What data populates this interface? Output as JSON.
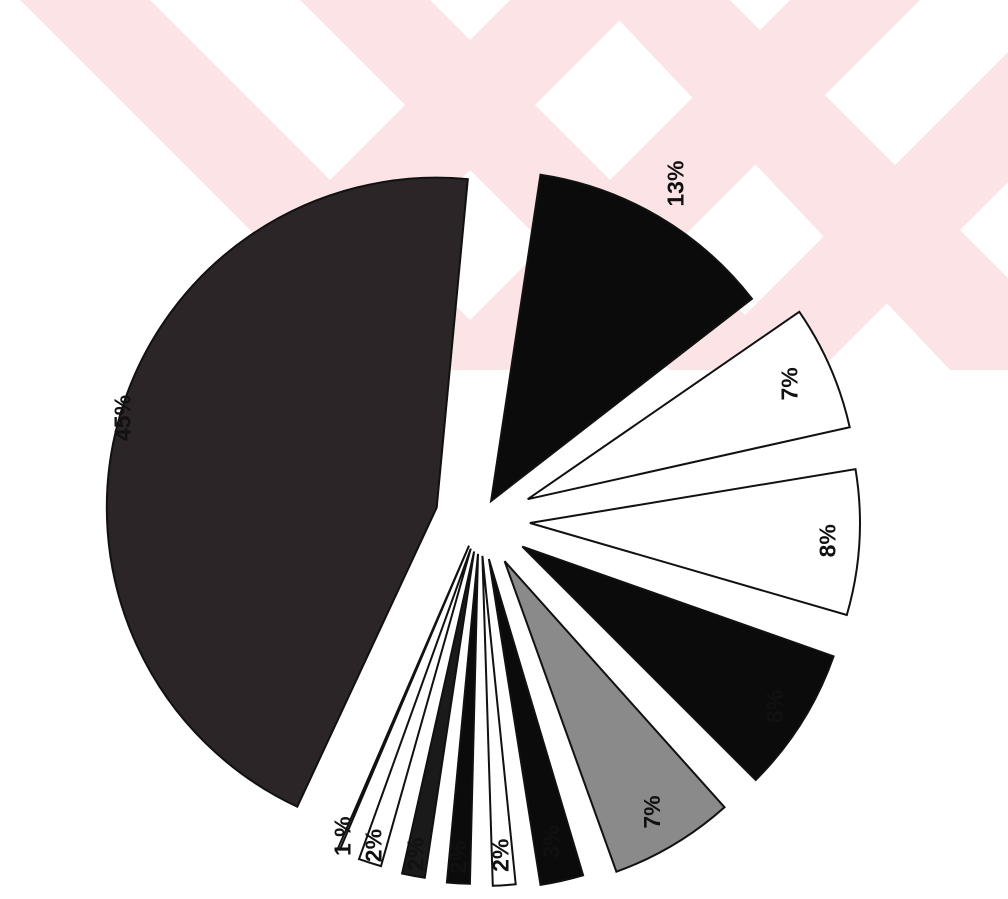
{
  "chart_data": {
    "type": "pie",
    "title": "",
    "exploded": true,
    "start_angle_deg": 205,
    "direction": "clockwise",
    "slices": [
      {
        "label": "45%",
        "value": 45,
        "fill": "#2b2527"
      },
      {
        "label": "13%",
        "value": 13,
        "fill": "#0b0b0b"
      },
      {
        "label": "7%",
        "value": 7,
        "fill": "#ffffff"
      },
      {
        "label": "8%",
        "value": 8,
        "fill": "#ffffff"
      },
      {
        "label": "8%",
        "value": 8,
        "fill": "#0b0b0b"
      },
      {
        "label": "7%",
        "value": 7,
        "fill": "#8a8a8a"
      },
      {
        "label": "3%",
        "value": 3,
        "fill": "#0b0b0b"
      },
      {
        "label": "2%",
        "value": 2,
        "fill": "#ffffff"
      },
      {
        "label": "2%",
        "value": 2,
        "fill": "#0b0b0b"
      },
      {
        "label": "2%",
        "value": 2,
        "fill": "#1a1a1a"
      },
      {
        "label": "2%",
        "value": 2,
        "fill": "#ffffff"
      },
      {
        "label": "1 %",
        "value": 1,
        "fill": "#ffffff"
      }
    ]
  },
  "watermark": {
    "color": "#fbe3e6"
  }
}
